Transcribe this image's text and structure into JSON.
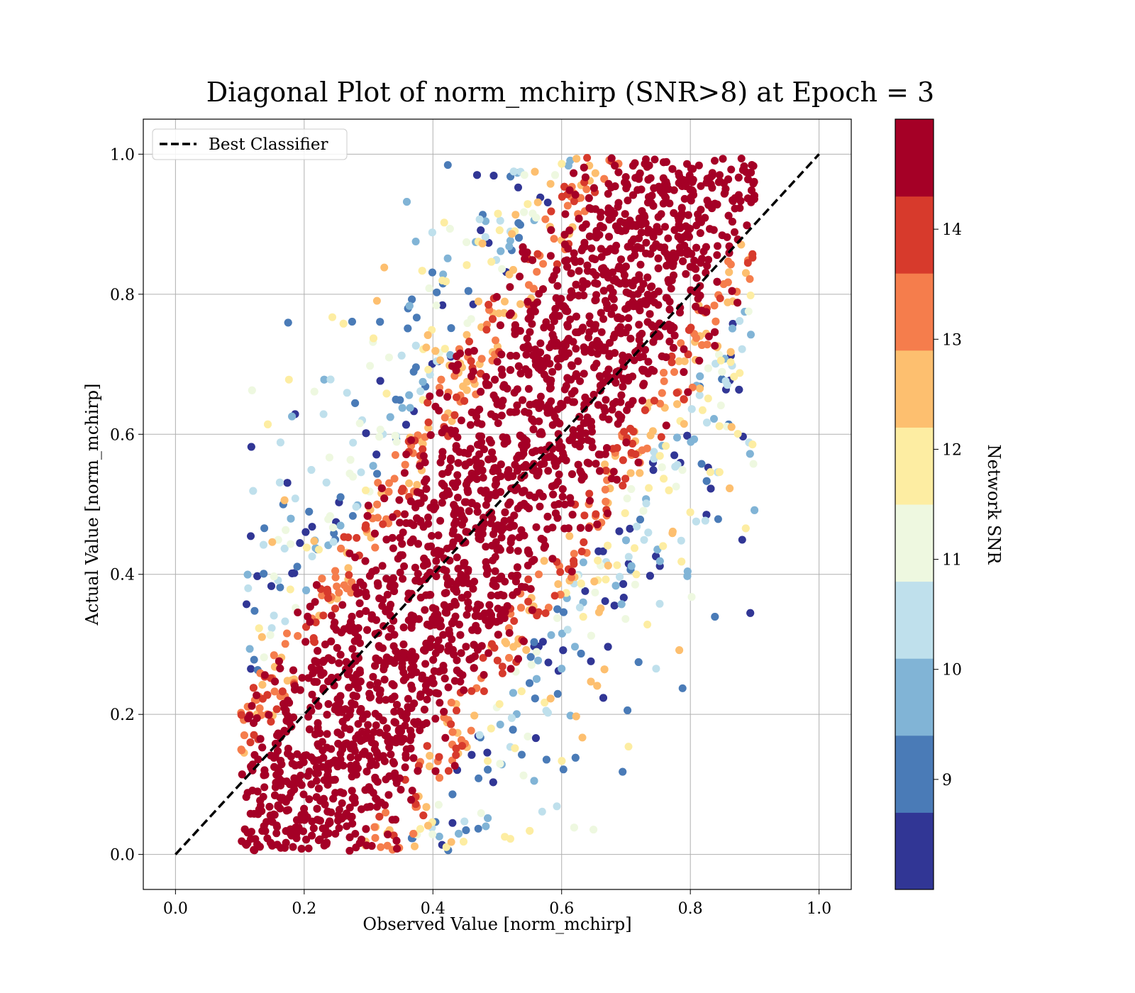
{
  "chart_data": {
    "type": "scatter",
    "title": "Diagonal Plot of norm_mchirp (SNR>8) at Epoch = 3",
    "xlabel": "Observed Value [norm_mchirp]",
    "ylabel": "Actual Value [norm_mchirp]",
    "xlim": [
      -0.05,
      1.05
    ],
    "ylim": [
      -0.05,
      1.05
    ],
    "xticks": [
      "0.0",
      "0.2",
      "0.4",
      "0.6",
      "0.8",
      "1.0"
    ],
    "yticks": [
      "0.0",
      "0.2",
      "0.4",
      "0.6",
      "0.8",
      "1.0"
    ],
    "grid": true,
    "legend": {
      "placement": "upper-left",
      "entries": [
        {
          "label": "Best Classifier",
          "style": "dashed",
          "color": "#000000"
        }
      ]
    },
    "reference_line": {
      "name": "Best Classifier",
      "x": [
        0.0,
        1.0
      ],
      "y": [
        0.0,
        1.0
      ]
    },
    "colorbar": {
      "label": "Network SNR",
      "range": [
        8.0,
        15.0
      ],
      "ticks": [
        "9",
        "10",
        "11",
        "12",
        "13",
        "14"
      ],
      "bands": [
        {
          "from": 8.0,
          "to": 8.7,
          "color": "#313695"
        },
        {
          "from": 8.7,
          "to": 9.4,
          "color": "#4a7bb7"
        },
        {
          "from": 9.4,
          "to": 10.1,
          "color": "#81b4d6"
        },
        {
          "from": 10.1,
          "to": 10.8,
          "color": "#bfe0ec"
        },
        {
          "from": 10.8,
          "to": 11.5,
          "color": "#eef8e0"
        },
        {
          "from": 11.5,
          "to": 12.2,
          "color": "#fdeda2"
        },
        {
          "from": 12.2,
          "to": 12.9,
          "color": "#fdbf6f"
        },
        {
          "from": 12.9,
          "to": 13.6,
          "color": "#f57d4c"
        },
        {
          "from": 13.6,
          "to": 14.3,
          "color": "#d73a2c"
        },
        {
          "from": 14.3,
          "to": 15.0,
          "color": "#a50026"
        }
      ]
    },
    "series": [
      {
        "x": [
          0.2,
          0.25,
          0.3,
          0.35,
          0.4,
          0.45,
          0.5,
          0.55,
          0.6,
          0.65,
          0.7,
          0.75,
          0.8
        ],
        "y": [
          0.15,
          0.22,
          0.28,
          0.35,
          0.42,
          0.48,
          0.55,
          0.62,
          0.68,
          0.75,
          0.82,
          0.88,
          0.9
        ],
        "snr_color_range": [
          8.0,
          15.0
        ]
      }
    ]
  }
}
